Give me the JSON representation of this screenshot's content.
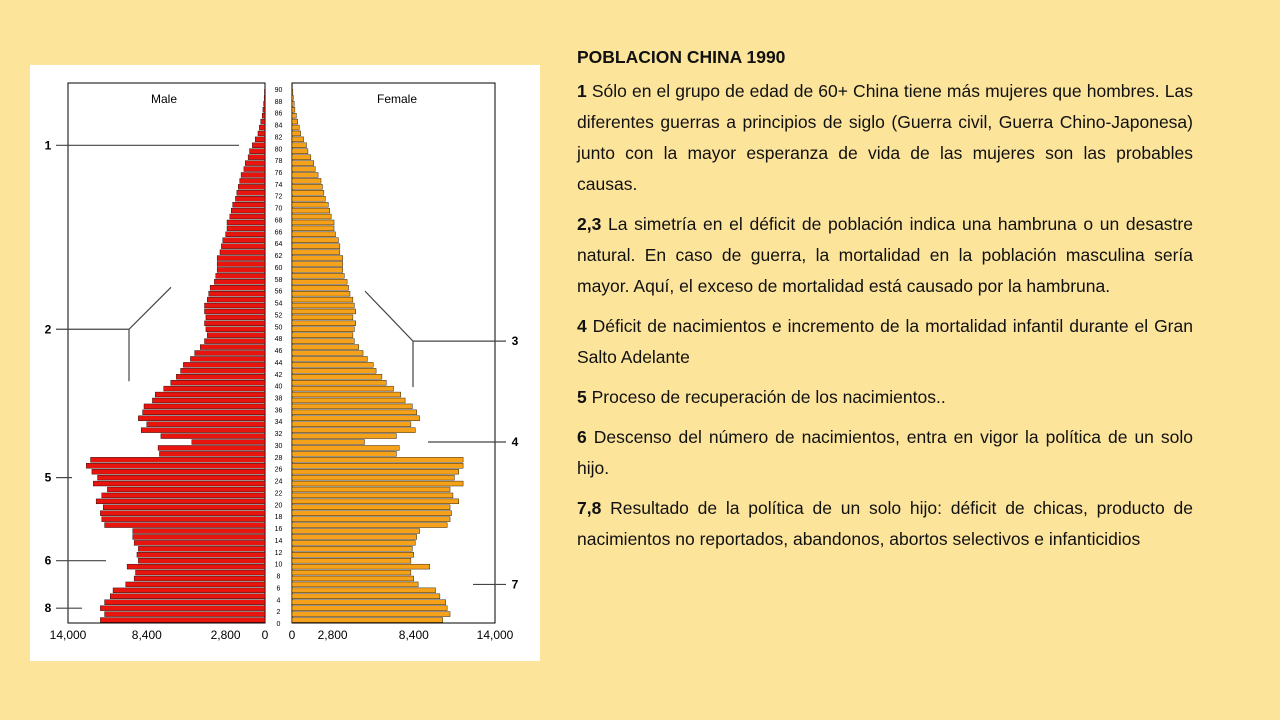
{
  "colors": {
    "background": "#fce49b",
    "male_bar": "#e8140e",
    "female_bar": "#f5a11a",
    "bar_outline": "#000000"
  },
  "title": "POBLACION CHINA 1990",
  "paragraphs": [
    {
      "num": "1",
      "text": "Sólo en el grupo de edad de 60+ China tiene más mujeres que hombres. Las diferentes guerras a principios de siglo (Guerra civil, Guerra Chino-Japonesa) junto con la mayor esperanza de vida de las mujeres son las probables causas."
    },
    {
      "num": "2,3",
      "text": "La simetría en el déficit de población indica una hambruna o un desastre natural. En caso de guerra, la mortalidad en la población masculina sería mayor. Aquí, el exceso de mortalidad está causado por la hambruna."
    },
    {
      "num": "4",
      "text": "Déficit de nacimientos e incremento de la mortalidad infantil durante el Gran Salto Adelante"
    },
    {
      "num": "5",
      "text": "Proceso de recuperación de los nacimientos.."
    },
    {
      "num": "6",
      "text": "Descenso del número de nacimientos, entra en vigor la política de un solo hijo."
    },
    {
      "num": "7,8",
      "text": "Resultado de la política de un solo hijo: déficit de chicas, producto de nacimientos no reportados, abandonos, abortos selectivos e infanticidios"
    }
  ],
  "chart_data": {
    "type": "bar",
    "orientation": "horizontal-pyramid",
    "male_label": "Male",
    "female_label": "Female",
    "age_tick_labels": [
      "0",
      "2",
      "4",
      "6",
      "8",
      "10",
      "12",
      "14",
      "16",
      "18",
      "20",
      "22",
      "24",
      "26",
      "28",
      "30",
      "32",
      "34",
      "36",
      "38",
      "40",
      "42",
      "44",
      "46",
      "48",
      "50",
      "52",
      "54",
      "56",
      "58",
      "60",
      "62",
      "64",
      "66",
      "68",
      "70",
      "72",
      "74",
      "76",
      "78",
      "80",
      "82",
      "84",
      "86",
      "88",
      "90"
    ],
    "x_tick_labels_male": [
      "14,000",
      "8,400",
      "2,800",
      "0"
    ],
    "x_tick_labels_female": [
      "0",
      "2,800",
      "8,400",
      "14,000"
    ],
    "x_max": 14000,
    "annotations_left": [
      {
        "label": "1",
        "age": 80
      },
      {
        "label": "2",
        "age": 49
      },
      {
        "label": "5",
        "age": 24
      },
      {
        "label": "6",
        "age": 10
      },
      {
        "label": "8",
        "age": 2
      }
    ],
    "annotations_right": [
      {
        "label": "3",
        "age": 47
      },
      {
        "label": "4",
        "age": 30
      },
      {
        "label": "7",
        "age": 6
      }
    ],
    "ages": [
      0,
      1,
      2,
      3,
      4,
      5,
      6,
      7,
      8,
      9,
      10,
      11,
      12,
      13,
      14,
      15,
      16,
      17,
      18,
      19,
      20,
      21,
      22,
      23,
      24,
      25,
      26,
      27,
      28,
      29,
      30,
      31,
      32,
      33,
      34,
      35,
      36,
      37,
      38,
      39,
      40,
      41,
      42,
      43,
      44,
      45,
      46,
      47,
      48,
      49,
      50,
      51,
      52,
      53,
      54,
      55,
      56,
      57,
      58,
      59,
      60,
      61,
      62,
      63,
      64,
      65,
      66,
      67,
      68,
      69,
      70,
      71,
      72,
      73,
      74,
      75,
      76,
      77,
      78,
      79,
      80,
      81,
      82,
      83,
      84,
      85,
      86,
      87,
      88,
      89,
      90
    ],
    "male": [
      11700,
      11400,
      11700,
      11400,
      11000,
      10800,
      9900,
      9300,
      9200,
      9800,
      9000,
      9100,
      9000,
      9300,
      9400,
      9400,
      11400,
      11600,
      11700,
      11500,
      12000,
      11600,
      11200,
      12200,
      11900,
      12300,
      12700,
      12400,
      7500,
      7600,
      5200,
      7400,
      8800,
      8400,
      9000,
      8700,
      8600,
      8000,
      7800,
      7200,
      6700,
      6300,
      6000,
      5800,
      5300,
      5000,
      4600,
      4300,
      4100,
      4200,
      4300,
      4200,
      4300,
      4300,
      4100,
      4000,
      3900,
      3600,
      3500,
      3400,
      3400,
      3400,
      3200,
      3100,
      3000,
      2800,
      2700,
      2700,
      2500,
      2400,
      2300,
      2100,
      2000,
      1900,
      1800,
      1700,
      1500,
      1400,
      1200,
      1100,
      900,
      700,
      500,
      400,
      300,
      200,
      150,
      100,
      60,
      40,
      20
    ],
    "female": [
      10400,
      10900,
      10700,
      10600,
      10200,
      9900,
      8700,
      8400,
      8200,
      9500,
      8200,
      8400,
      8300,
      8500,
      8600,
      8800,
      10700,
      10900,
      11000,
      10900,
      11500,
      11100,
      10900,
      11800,
      11200,
      11500,
      11800,
      11800,
      7200,
      7400,
      5000,
      7200,
      8500,
      8200,
      8800,
      8600,
      8300,
      7800,
      7500,
      7000,
      6500,
      6200,
      5800,
      5600,
      5200,
      4900,
      4600,
      4300,
      4200,
      4300,
      4400,
      4200,
      4400,
      4300,
      4200,
      4000,
      3900,
      3800,
      3600,
      3500,
      3500,
      3500,
      3300,
      3300,
      3200,
      3000,
      2900,
      2900,
      2700,
      2600,
      2500,
      2300,
      2200,
      2100,
      2000,
      1800,
      1600,
      1500,
      1300,
      1100,
      1000,
      800,
      600,
      500,
      400,
      300,
      200,
      150,
      90,
      60,
      30
    ]
  }
}
